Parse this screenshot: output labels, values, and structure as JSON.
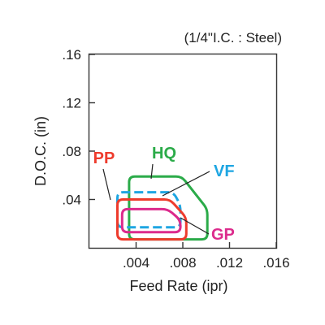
{
  "chart_data": {
    "type": "area",
    "title": "",
    "note": "(1/4\"I.C. : Steel)",
    "xlabel": "Feed Rate (ipr)",
    "ylabel": "D.O.C. (in)",
    "xlim": [
      0,
      0.016
    ],
    "ylim": [
      0,
      0.16
    ],
    "x_ticks": [
      {
        "value": 0.004,
        "label": ".004"
      },
      {
        "value": 0.008,
        "label": ".008"
      },
      {
        "value": 0.012,
        "label": ".012"
      },
      {
        "value": 0.016,
        "label": ".016"
      }
    ],
    "y_ticks": [
      {
        "value": 0.04,
        "label": ".04"
      },
      {
        "value": 0.08,
        "label": ".08"
      },
      {
        "value": 0.12,
        "label": ".12"
      },
      {
        "value": 0.16,
        "label": ".16"
      }
    ],
    "grid": false,
    "series": [
      {
        "name": "HQ",
        "color": "#2bab49",
        "dash": false,
        "points": [
          [
            0.0034,
            0.007
          ],
          [
            0.0101,
            0.007
          ],
          [
            0.0101,
            0.032
          ],
          [
            0.0079,
            0.059
          ],
          [
            0.0034,
            0.059
          ]
        ]
      },
      {
        "name": "VF",
        "color": "#1ea6e2",
        "dash": true,
        "points": [
          [
            0.0024,
            0.017
          ],
          [
            0.0078,
            0.017
          ],
          [
            0.0078,
            0.035
          ],
          [
            0.0072,
            0.046
          ],
          [
            0.0024,
            0.046
          ]
        ]
      },
      {
        "name": "PP",
        "color": "#ee3b2c",
        "dash": false,
        "points": [
          [
            0.0024,
            0.007
          ],
          [
            0.0083,
            0.007
          ],
          [
            0.0083,
            0.025
          ],
          [
            0.0069,
            0.04
          ],
          [
            0.0024,
            0.04
          ]
        ]
      },
      {
        "name": "GP",
        "color": "#dc2a8c",
        "dash": false,
        "points": [
          [
            0.0028,
            0.013
          ],
          [
            0.0078,
            0.013
          ],
          [
            0.0078,
            0.023
          ],
          [
            0.0067,
            0.032
          ],
          [
            0.0028,
            0.032
          ]
        ]
      }
    ],
    "labels": [
      {
        "series": "HQ",
        "text": "HQ"
      },
      {
        "series": "VF",
        "text": "VF"
      },
      {
        "series": "PP",
        "text": "PP"
      },
      {
        "series": "GP",
        "text": "GP"
      }
    ]
  }
}
